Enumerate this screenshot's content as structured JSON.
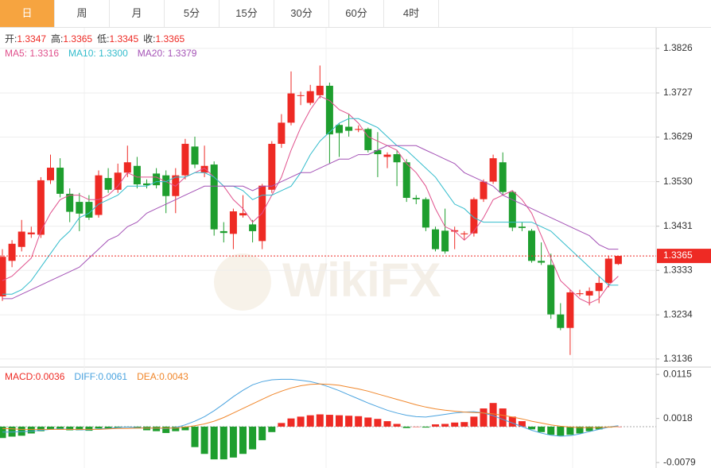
{
  "tabs": [
    "日",
    "周",
    "月",
    "5分",
    "15分",
    "30分",
    "60分",
    "4时"
  ],
  "active_tab": 0,
  "watermark": "WikiFX",
  "chart_data": [
    {
      "type": "candlestick",
      "info": [
        {
          "label": "开:",
          "value": "1.3347"
        },
        {
          "label": "高:",
          "value": "1.3365"
        },
        {
          "label": "低:",
          "value": "1.3345"
        },
        {
          "label": "收:",
          "value": "1.3365"
        }
      ],
      "up_color": "#ee2a24",
      "down_color": "#1e9e2e",
      "open": [
        1.3275,
        1.3354,
        1.3385,
        1.3413,
        1.3412,
        1.3533,
        1.3561,
        1.3503,
        1.3485,
        1.3485,
        1.3456,
        1.3538,
        1.3512,
        1.355,
        1.3565,
        1.3526,
        1.3548,
        1.3544,
        1.3498,
        1.3544,
        1.3608,
        1.355,
        1.3568,
        1.342,
        1.3414,
        1.3455,
        1.3435,
        1.3398,
        1.3512,
        1.3614,
        1.3661,
        1.3722,
        1.3705,
        1.3722,
        1.3743,
        1.3656,
        1.3652,
        1.3645,
        1.3647,
        1.36,
        1.3585,
        1.3591,
        1.3573,
        1.3494,
        1.3491,
        1.3424,
        1.3421,
        1.3419,
        1.3413,
        1.3415,
        1.3491,
        1.353,
        1.3573,
        1.3507,
        1.343,
        1.3421,
        1.3354,
        1.3345,
        1.3235,
        1.3205,
        1.328,
        1.3277,
        1.3287,
        1.3305,
        1.3347
      ],
      "high": [
        1.338,
        1.34,
        1.3445,
        1.343,
        1.354,
        1.359,
        1.3582,
        1.3515,
        1.3505,
        1.35,
        1.3555,
        1.356,
        1.357,
        1.361,
        1.3585,
        1.3535,
        1.356,
        1.3555,
        1.356,
        1.3625,
        1.363,
        1.361,
        1.3575,
        1.344,
        1.347,
        1.35,
        1.3445,
        1.3525,
        1.362,
        1.368,
        1.3775,
        1.373,
        1.3745,
        1.3788,
        1.375,
        1.366,
        1.368,
        1.3655,
        1.365,
        1.364,
        1.3595,
        1.36,
        1.358,
        1.35,
        1.3495,
        1.343,
        1.347,
        1.343,
        1.342,
        1.3495,
        1.3535,
        1.359,
        1.3595,
        1.351,
        1.344,
        1.3425,
        1.3395,
        1.337,
        1.326,
        1.329,
        1.329,
        1.3295,
        1.332,
        1.3365,
        1.3365
      ],
      "low": [
        1.3265,
        1.334,
        1.3375,
        1.3405,
        1.3405,
        1.3525,
        1.3495,
        1.344,
        1.342,
        1.3445,
        1.345,
        1.3505,
        1.3505,
        1.354,
        1.3515,
        1.3515,
        1.3515,
        1.346,
        1.346,
        1.3535,
        1.356,
        1.354,
        1.341,
        1.3395,
        1.338,
        1.345,
        1.3395,
        1.338,
        1.3505,
        1.3605,
        1.3655,
        1.37,
        1.37,
        1.3715,
        1.357,
        1.3585,
        1.363,
        1.364,
        1.3595,
        1.354,
        1.356,
        1.352,
        1.3485,
        1.348,
        1.342,
        1.3375,
        1.337,
        1.338,
        1.34,
        1.3408,
        1.3485,
        1.3525,
        1.35,
        1.342,
        1.342,
        1.335,
        1.3345,
        1.3225,
        1.32,
        1.3145,
        1.3275,
        1.3255,
        1.326,
        1.3295,
        1.3345
      ],
      "close": [
        1.3363,
        1.3392,
        1.3419,
        1.3417,
        1.3533,
        1.3561,
        1.3503,
        1.3463,
        1.3459,
        1.345,
        1.3544,
        1.3512,
        1.355,
        1.3573,
        1.3524,
        1.3522,
        1.3522,
        1.3498,
        1.3544,
        1.3614,
        1.3568,
        1.3565,
        1.3424,
        1.3416,
        1.3464,
        1.346,
        1.342,
        1.3521,
        1.3614,
        1.3661,
        1.3726,
        1.3722,
        1.3731,
        1.3743,
        1.3635,
        1.3638,
        1.3643,
        1.3647,
        1.36,
        1.3591,
        1.359,
        1.3573,
        1.3494,
        1.3491,
        1.3428,
        1.338,
        1.3375,
        1.3422,
        1.3415,
        1.3491,
        1.353,
        1.3582,
        1.3507,
        1.3428,
        1.3427,
        1.3354,
        1.335,
        1.3235,
        1.3205,
        1.3284,
        1.3282,
        1.3287,
        1.3305,
        1.3359,
        1.3365
      ],
      "series": [
        {
          "name": "MA5: 1.3316",
          "color": "#e0508c",
          "values": [
            1.331,
            1.332,
            1.334,
            1.336,
            1.342,
            1.346,
            1.349,
            1.35,
            1.35,
            1.349,
            1.349,
            1.35,
            1.352,
            1.355,
            1.354,
            1.354,
            1.354,
            1.353,
            1.352,
            1.354,
            1.355,
            1.356,
            1.354,
            1.352,
            1.349,
            1.347,
            1.344,
            1.346,
            1.35,
            1.354,
            1.36,
            1.365,
            1.369,
            1.372,
            1.371,
            1.369,
            1.368,
            1.366,
            1.363,
            1.362,
            1.361,
            1.36,
            1.357,
            1.355,
            1.352,
            1.347,
            1.343,
            1.342,
            1.34,
            1.342,
            1.345,
            1.349,
            1.35,
            1.351,
            1.349,
            1.346,
            1.341,
            1.336,
            1.331,
            1.329,
            1.327,
            1.326,
            1.327,
            1.33,
            1.332
          ]
        },
        {
          "name": "MA10: 1.3300",
          "color": "#33bccc",
          "values": [
            1.328,
            1.328,
            1.329,
            1.331,
            1.334,
            1.337,
            1.34,
            1.342,
            1.345,
            1.346,
            1.348,
            1.349,
            1.35,
            1.352,
            1.352,
            1.352,
            1.353,
            1.353,
            1.354,
            1.354,
            1.355,
            1.355,
            1.354,
            1.352,
            1.352,
            1.351,
            1.349,
            1.35,
            1.35,
            1.351,
            1.352,
            1.355,
            1.359,
            1.362,
            1.364,
            1.366,
            1.367,
            1.367,
            1.366,
            1.365,
            1.363,
            1.361,
            1.36,
            1.358,
            1.356,
            1.354,
            1.351,
            1.348,
            1.347,
            1.345,
            1.344,
            1.344,
            1.344,
            1.344,
            1.344,
            1.344,
            1.343,
            1.342,
            1.34,
            1.338,
            1.336,
            1.334,
            1.332,
            1.33,
            1.33
          ]
        },
        {
          "name": "MA20: 1.3379",
          "color": "#a452b6",
          "values": [
            1.327,
            1.327,
            1.328,
            1.329,
            1.33,
            1.331,
            1.332,
            1.333,
            1.334,
            1.336,
            1.338,
            1.34,
            1.341,
            1.343,
            1.344,
            1.346,
            1.347,
            1.348,
            1.349,
            1.35,
            1.351,
            1.352,
            1.352,
            1.352,
            1.352,
            1.352,
            1.351,
            1.352,
            1.352,
            1.353,
            1.354,
            1.355,
            1.355,
            1.356,
            1.357,
            1.358,
            1.358,
            1.359,
            1.359,
            1.36,
            1.361,
            1.361,
            1.361,
            1.361,
            1.36,
            1.359,
            1.358,
            1.357,
            1.355,
            1.354,
            1.353,
            1.352,
            1.35,
            1.349,
            1.348,
            1.347,
            1.346,
            1.345,
            1.344,
            1.343,
            1.342,
            1.341,
            1.339,
            1.338,
            1.338
          ]
        }
      ],
      "last_price": 1.3365,
      "last_price_color": "#ee2a24",
      "ylim": [
        1.3118,
        1.387
      ],
      "yticks": [
        1.3826,
        1.3727,
        1.3629,
        {
          "value": 1.353,
          "label": "1.3530"
        },
        1.3431,
        1.3333,
        1.3234,
        1.3136
      ],
      "grid": true
    },
    {
      "type": "macd",
      "histogram_name": "MACD:0.0036",
      "histogram_name_color": "#ee2a24",
      "up_color": "#ee2a24",
      "down_color": "#1e9e2e",
      "histogram": [
        -0.0025,
        -0.0022,
        -0.002,
        -0.0015,
        -0.001,
        -0.0006,
        -0.0005,
        -0.0008,
        -0.0008,
        -0.0009,
        -0.0004,
        -0.0004,
        -0.0002,
        -0.0001,
        -0.0004,
        -0.0008,
        -0.001,
        -0.0014,
        -0.001,
        -0.0008,
        -0.0045,
        -0.006,
        -0.0072,
        -0.0072,
        -0.0068,
        -0.006,
        -0.005,
        -0.003,
        -0.0012,
        0.0008,
        0.0018,
        0.0022,
        0.0025,
        0.0027,
        0.0026,
        0.0025,
        0.0024,
        0.0023,
        0.002,
        0.0017,
        0.0012,
        0.0006,
        -0.0003,
        0,
        -0.0002,
        0.0005,
        0.0006,
        0.0009,
        0.001,
        0.0022,
        0.004,
        0.0052,
        0.004,
        0.0022,
        0.0012,
        -0.0006,
        -0.0012,
        -0.0018,
        -0.002,
        -0.0018,
        -0.0015,
        -0.001,
        -0.0006,
        -0.0002,
        0
      ],
      "series": [
        {
          "name": "DIFF:0.0061",
          "color": "#4aa3df",
          "values": [
            -0.0012,
            -0.0012,
            -0.0011,
            -0.001,
            -0.0008,
            -0.0006,
            -0.0005,
            -0.0006,
            -0.0007,
            -0.0007,
            -0.0005,
            -0.0004,
            -0.0002,
            -0.0001,
            -0.0002,
            -0.0003,
            -0.0003,
            -0.0004,
            -0.0002,
            0.0004,
            0.0012,
            0.0022,
            0.0035,
            0.005,
            0.0066,
            0.008,
            0.0092,
            0.0099,
            0.0103,
            0.0104,
            0.0104,
            0.0102,
            0.0099,
            0.0094,
            0.0087,
            0.0079,
            0.007,
            0.0061,
            0.0052,
            0.0044,
            0.0036,
            0.003,
            0.0025,
            0.0022,
            0.0021,
            0.0024,
            0.0027,
            0.003,
            0.0032,
            0.0033,
            0.003,
            0.0024,
            0.0016,
            0.0008,
            0,
            -0.0008,
            -0.0014,
            -0.0019,
            -0.0021,
            -0.002,
            -0.0016,
            -0.0011,
            -0.0006,
            -0.0001,
            0.0002
          ]
        },
        {
          "name": "DEA:0.0043",
          "color": "#f0862a",
          "values": [
            -0.0004,
            -0.0005,
            -0.0006,
            -0.0006,
            -0.0006,
            -0.0006,
            -0.0006,
            -0.0006,
            -0.0006,
            -0.0006,
            -0.0006,
            -0.0005,
            -0.0004,
            -0.0004,
            -0.0003,
            -0.0003,
            -0.0003,
            -0.0003,
            -0.0003,
            -0.0001,
            0.0002,
            0.0006,
            0.0012,
            0.002,
            0.003,
            0.004,
            0.005,
            0.006,
            0.007,
            0.0078,
            0.0085,
            0.009,
            0.0093,
            0.0094,
            0.0093,
            0.0091,
            0.0087,
            0.0083,
            0.0078,
            0.0072,
            0.0066,
            0.006,
            0.0054,
            0.0048,
            0.0043,
            0.0039,
            0.0036,
            0.0034,
            0.0032,
            0.0031,
            0.003,
            0.0028,
            0.0025,
            0.0021,
            0.0017,
            0.0012,
            0.0008,
            0.0004,
            0.0001,
            -0.0001,
            -0.0002,
            -0.0002,
            -0.0002,
            -0.0001,
            0
          ]
        }
      ],
      "ylim": [
        -0.0091,
        0.0131
      ],
      "yticks": [
        0.0115,
        0.0018,
        -0.0079
      ],
      "grid": false
    }
  ]
}
